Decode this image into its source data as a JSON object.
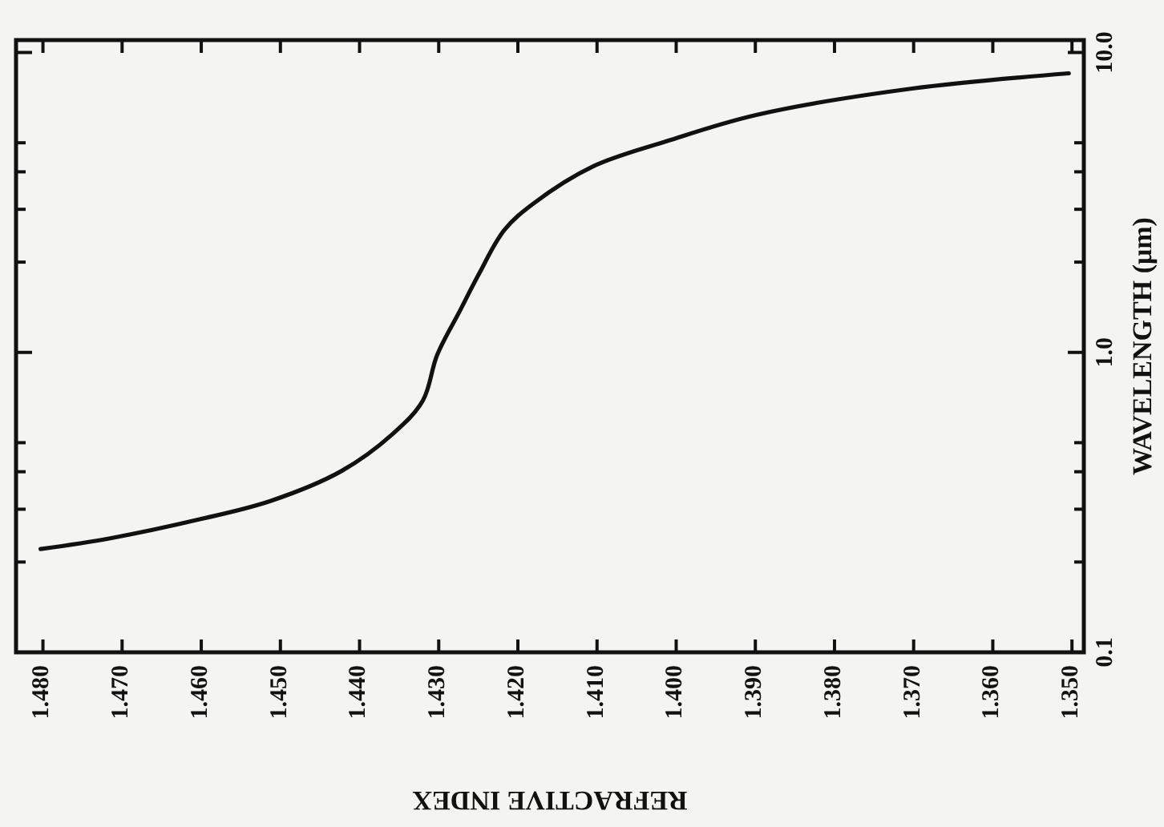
{
  "chart_data": {
    "type": "line",
    "xlabel": "REFRACTIVE INDEX",
    "ylabel": "WAVELENGTH (μm)",
    "x": [
      1.4803,
      1.4715,
      1.4601,
      1.4512,
      1.4423,
      1.4358,
      1.432,
      1.4302,
      1.4273,
      1.4249,
      1.4217,
      1.418,
      1.4105,
      1.401,
      1.3899,
      1.3702,
      1.3504
    ],
    "series": [
      {
        "color": "#111111",
        "values": [
          0.221,
          0.24,
          0.278,
          0.32,
          0.402,
          0.535,
          0.691,
          0.98,
          1.38,
          1.83,
          2.56,
          3.14,
          4.17,
          5.08,
          6.19,
          7.58,
          8.52
        ]
      }
    ],
    "xlim": [
      1.4834,
      1.3485
    ],
    "ylim": [
      0.1,
      11
    ],
    "log": "y",
    "grid": false,
    "marker": "none",
    "line_style": "solid",
    "xticks": [
      {
        "value": 1.48,
        "label": "1.480"
      },
      {
        "value": 1.47,
        "label": "1.470"
      },
      {
        "value": 1.46,
        "label": "1.460"
      },
      {
        "value": 1.45,
        "label": "1.450"
      },
      {
        "value": 1.44,
        "label": "1.440"
      },
      {
        "value": 1.43,
        "label": "1.430"
      },
      {
        "value": 1.42,
        "label": "1.420"
      },
      {
        "value": 1.41,
        "label": "1.410"
      },
      {
        "value": 1.4,
        "label": "1.400"
      },
      {
        "value": 1.39,
        "label": "1.390"
      },
      {
        "value": 1.38,
        "label": "1.380"
      },
      {
        "value": 1.37,
        "label": "1.370"
      },
      {
        "value": 1.36,
        "label": "1.360"
      },
      {
        "value": 1.35,
        "label": "1.350"
      }
    ],
    "yticks": [
      0.1,
      {
        "value": 0.2,
        "label": null
      },
      {
        "value": 0.3,
        "label": null
      },
      {
        "value": 0.4,
        "label": null
      },
      {
        "value": 0.5,
        "label": null
      },
      {
        "value": 1,
        "label": "1.0"
      },
      {
        "value": 2,
        "label": null
      },
      {
        "value": 3,
        "label": null
      },
      {
        "value": 4,
        "label": null
      },
      {
        "value": 5,
        "label": null
      },
      {
        "value": 10,
        "label": "10.0"
      }
    ]
  }
}
